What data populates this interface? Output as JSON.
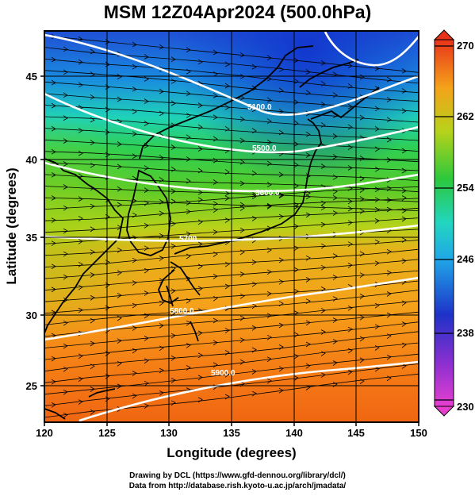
{
  "title": "MSM 12Z04Apr2024 (500.0hPa)",
  "credits": {
    "line1": "Drawing by DCL (https://www.gfd-dennou.org/library/dcl/)",
    "line2": "Data from http://database.rish.kyoto-u.ac.jp/arch/jmadata/"
  },
  "map": {
    "xlabel": "Longitude (degrees)",
    "ylabel": "Latitude  (degrees)",
    "xlim": [
      120,
      150
    ],
    "ylim": [
      22.4,
      47.6
    ],
    "xticks": [
      "120",
      "125",
      "130",
      "135",
      "140",
      "145",
      "150"
    ],
    "yticks": [
      "25",
      "30",
      "35",
      "40",
      "45"
    ],
    "gridlines": true,
    "shading": "temperature (K)",
    "vectors": "wind streamlines, westerly"
  },
  "colorbar": {
    "ticks": [
      "270",
      "262",
      "254",
      "246",
      "238",
      "230"
    ],
    "range": [
      230,
      270
    ]
  },
  "contours": [
    {
      "label": "5100.0"
    },
    {
      "label": "5500.0"
    },
    {
      "label": "5600.0"
    },
    {
      "label": "5700"
    },
    {
      "label": "5800.0"
    },
    {
      "label": "5900.0"
    }
  ],
  "colors": {
    "frame": "#000000",
    "contour": "#ffffff",
    "warm": "#ff6a00",
    "cold": "#1a3fd9"
  }
}
